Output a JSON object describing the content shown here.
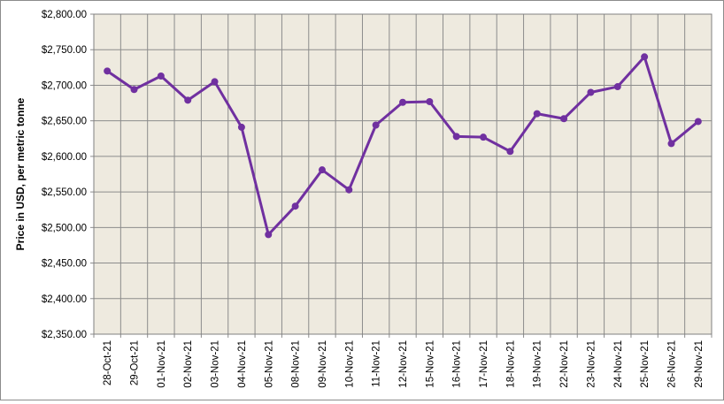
{
  "chart_data": {
    "type": "line",
    "title": "",
    "xlabel": "",
    "ylabel": "Price in USD, per metric tonne",
    "ylim": [
      2350,
      2800
    ],
    "ytick_step": 50,
    "ytick_labels": [
      "$2,350.00",
      "$2,400.00",
      "$2,450.00",
      "$2,500.00",
      "$2,550.00",
      "$2,600.00",
      "$2,650.00",
      "$2,700.00",
      "$2,750.00",
      "$2,800.00"
    ],
    "grid": true,
    "legend": "none",
    "categories": [
      "28-Oct-21",
      "29-Oct-21",
      "01-Nov-21",
      "02-Nov-21",
      "03-Nov-21",
      "04-Nov-21",
      "05-Nov-21",
      "08-Nov-21",
      "09-Nov-21",
      "10-Nov-21",
      "11-Nov-21",
      "12-Nov-21",
      "15-Nov-21",
      "16-Nov-21",
      "17-Nov-21",
      "18-Nov-21",
      "19-Nov-21",
      "22-Nov-21",
      "23-Nov-21",
      "24-Nov-21",
      "25-Nov-21",
      "26-Nov-21",
      "29-Nov-21"
    ],
    "series": [
      {
        "values": [
          2720,
          2694,
          2713,
          2679,
          2705,
          2641,
          2490,
          2530,
          2581,
          2553,
          2644,
          2676,
          2677,
          2628,
          2627,
          2607,
          2660,
          2653,
          2690,
          2698,
          2740,
          2618,
          2649
        ],
        "color": "#7030a0"
      }
    ],
    "colors": {
      "plot_background": "#eeeadf",
      "grid": "#8c8c8c",
      "line": "#7030a0"
    }
  }
}
